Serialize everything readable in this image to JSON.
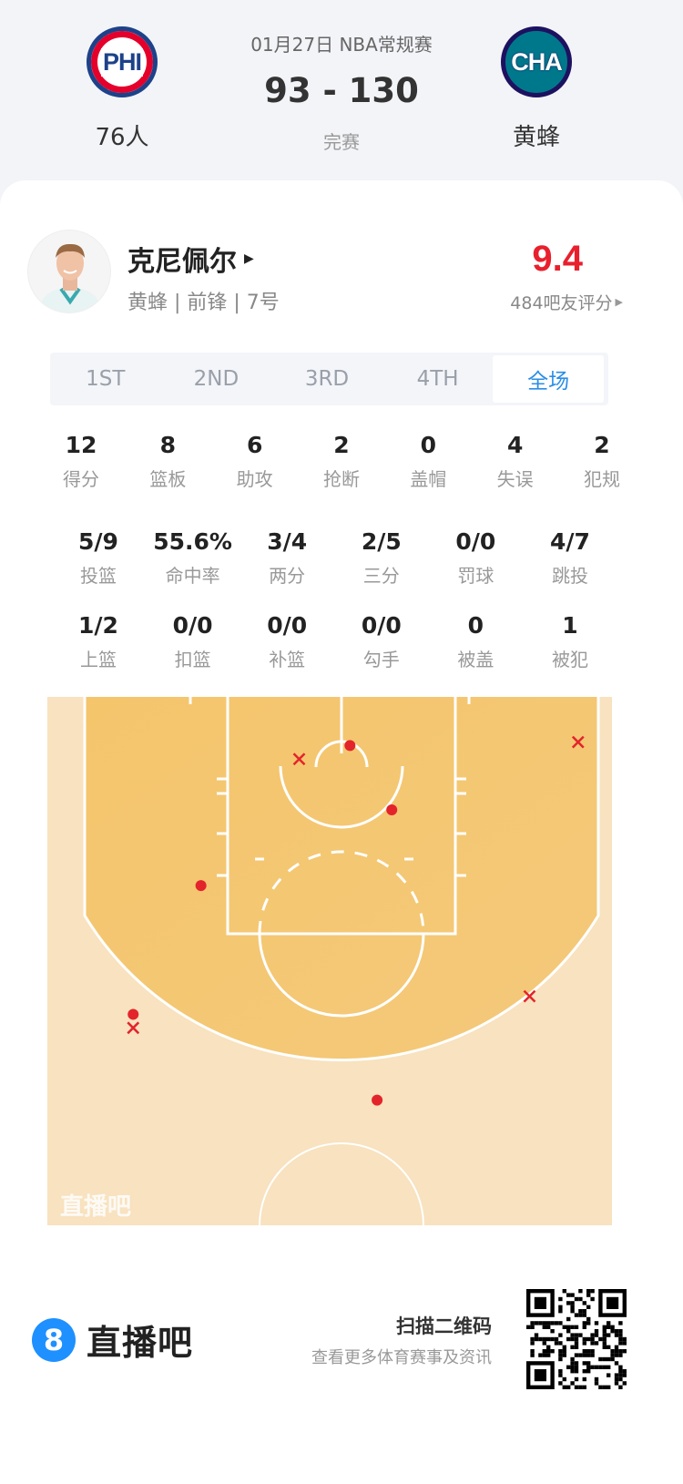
{
  "header": {
    "home": {
      "abbr": "PHI",
      "name": "76人",
      "icon": "phi-team-logo",
      "colors": [
        "#1d428a",
        "#e4002b"
      ]
    },
    "away": {
      "abbr": "CHA",
      "name": "黄蜂",
      "icon": "cha-team-logo",
      "colors": [
        "#00788c",
        "#1d1160"
      ]
    },
    "date_league": "01月27日 NBA常规赛",
    "score": "93 - 130",
    "status": "完赛"
  },
  "player": {
    "name": "克尼佩尔",
    "info": "黄蜂 | 前锋 | 7号",
    "rating": "9.4",
    "rating_count": "484吧友评分",
    "rating_color": "#e8202e"
  },
  "tabs": [
    {
      "label": "1ST"
    },
    {
      "label": "2ND"
    },
    {
      "label": "3RD"
    },
    {
      "label": "4TH"
    },
    {
      "label": "全场",
      "active": true
    }
  ],
  "stats_row1": [
    {
      "v": "12",
      "l": "得分"
    },
    {
      "v": "8",
      "l": "篮板"
    },
    {
      "v": "6",
      "l": "助攻"
    },
    {
      "v": "2",
      "l": "抢断"
    },
    {
      "v": "0",
      "l": "盖帽"
    },
    {
      "v": "4",
      "l": "失误"
    },
    {
      "v": "2",
      "l": "犯规"
    }
  ],
  "stats_row2": [
    {
      "v": "5/9",
      "l": "投篮"
    },
    {
      "v": "55.6%",
      "l": "命中率"
    },
    {
      "v": "3/4",
      "l": "两分"
    },
    {
      "v": "2/5",
      "l": "三分"
    },
    {
      "v": "0/0",
      "l": "罚球"
    },
    {
      "v": "4/7",
      "l": "跳投"
    }
  ],
  "stats_row3": [
    {
      "v": "1/2",
      "l": "上篮"
    },
    {
      "v": "0/0",
      "l": "扣篮"
    },
    {
      "v": "0/0",
      "l": "补篮"
    },
    {
      "v": "0/0",
      "l": "勾手"
    },
    {
      "v": "0",
      "l": "被盖"
    },
    {
      "v": "1",
      "l": "被犯"
    }
  ],
  "shot_chart": {
    "watermark": "直播吧",
    "units": "feet (x from center line, y from baseline)",
    "made_color": "#e3242b",
    "shots": [
      {
        "x": 1.8,
        "y": 4.3,
        "made": true
      },
      {
        "x": 5.5,
        "y": 10.0,
        "made": true
      },
      {
        "x": -11.4,
        "y": 16.7,
        "made": true
      },
      {
        "x": -17.4,
        "y": 28.1,
        "made": true
      },
      {
        "x": 4.2,
        "y": 35.7,
        "made": true
      },
      {
        "x": -2.7,
        "y": 5.5,
        "made": false
      },
      {
        "x": 22.0,
        "y": 4.0,
        "made": false
      },
      {
        "x": -17.4,
        "y": 29.3,
        "made": false
      },
      {
        "x": 17.7,
        "y": 26.5,
        "made": false
      }
    ]
  },
  "footer": {
    "brand": "直播吧",
    "brand_icon": "8",
    "scan_title": "扫描二维码",
    "scan_sub": "查看更多体育赛事及资讯"
  }
}
